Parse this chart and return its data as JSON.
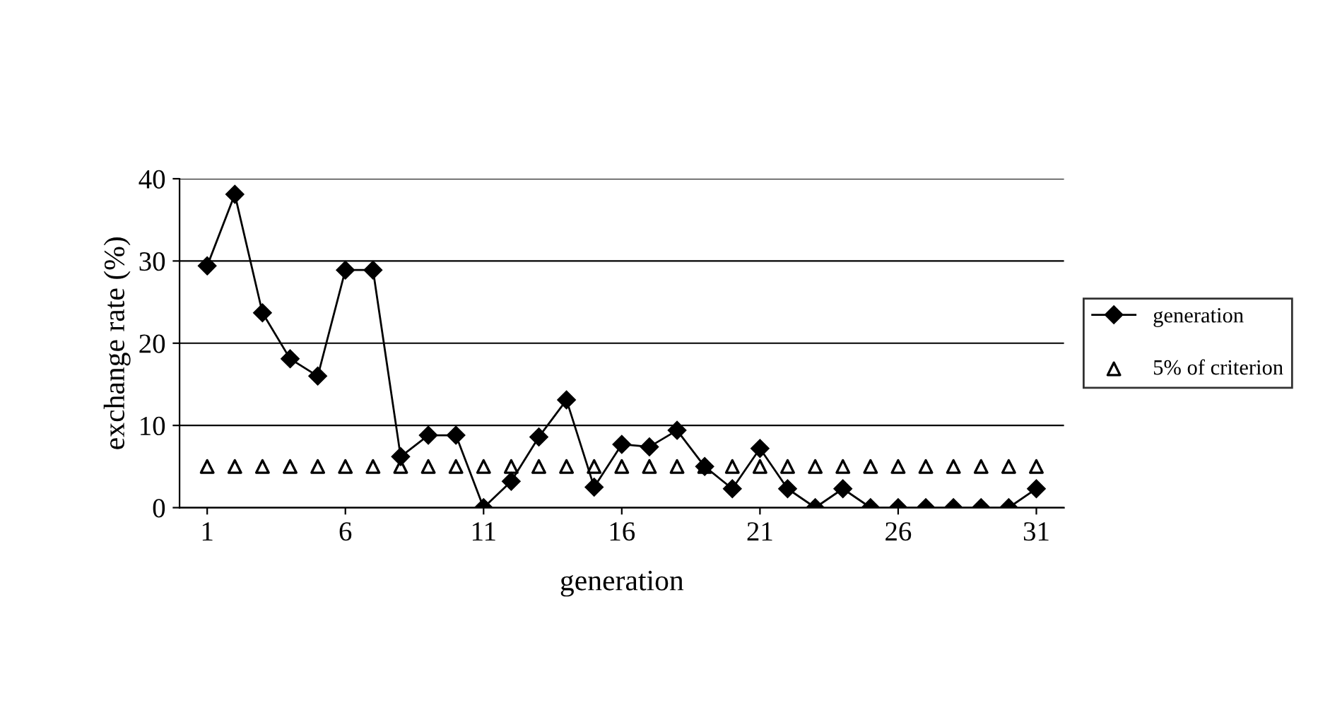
{
  "chart_data": {
    "type": "line",
    "xlabel": "generation",
    "ylabel": "exchange rate (%)",
    "x": [
      1,
      2,
      3,
      4,
      5,
      6,
      7,
      8,
      9,
      10,
      11,
      12,
      13,
      14,
      15,
      16,
      17,
      18,
      19,
      20,
      21,
      22,
      23,
      24,
      25,
      26,
      27,
      28,
      29,
      30,
      31
    ],
    "series": [
      {
        "name": "generation",
        "color": "#000000",
        "marker": "diamond",
        "line_style": "solid",
        "values": [
          29.4,
          38.1,
          23.7,
          18.1,
          16.0,
          28.9,
          28.9,
          6.2,
          8.8,
          8.8,
          0,
          3.2,
          8.6,
          13.1,
          2.5,
          7.7,
          7.4,
          9.4,
          5.0,
          2.3,
          7.2,
          2.3,
          0,
          2.3,
          0,
          0,
          0,
          0,
          0,
          0,
          2.3
        ]
      },
      {
        "name": "5% of criterion",
        "color": "#000000",
        "marker": "triangle",
        "type": "scatter",
        "values": [
          5,
          5,
          5,
          5,
          5,
          5,
          5,
          5,
          5,
          5,
          5,
          5,
          5,
          5,
          5,
          5,
          5,
          5,
          5,
          5,
          5,
          5,
          5,
          5,
          5,
          5,
          5,
          5,
          5,
          5,
          5
        ]
      }
    ],
    "xlim": [
      0,
      32
    ],
    "xticks": [
      1,
      6,
      11,
      16,
      21,
      26,
      31
    ],
    "ylim": [
      0,
      40
    ],
    "yticks": [
      0,
      10,
      20,
      30,
      40
    ],
    "grid": "y",
    "legend": "right"
  }
}
